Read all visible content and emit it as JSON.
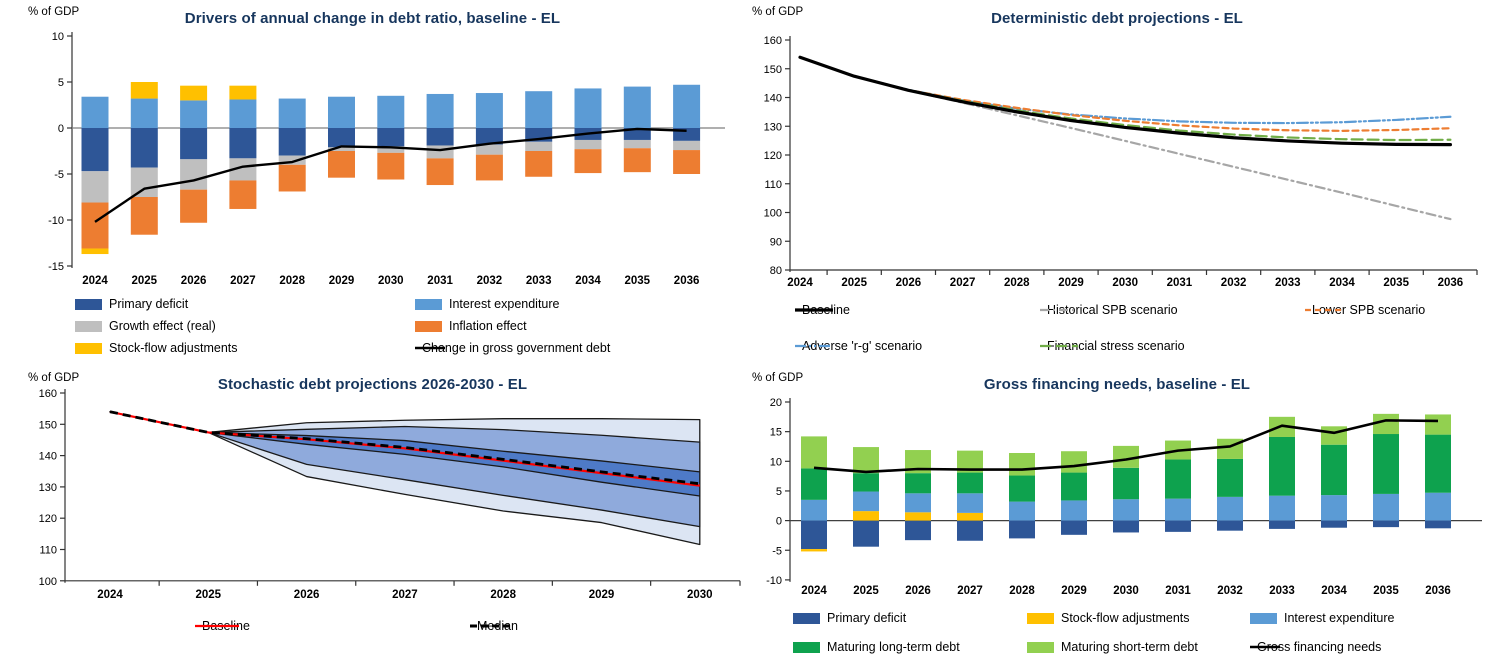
{
  "chart_data": [
    {
      "type": "bar",
      "title": "Drivers of annual change in debt ratio, baseline - EL",
      "unit": "% of GDP",
      "categories": [
        "2024",
        "2025",
        "2026",
        "2027",
        "2028",
        "2029",
        "2030",
        "2031",
        "2032",
        "2033",
        "2034",
        "2035",
        "2036"
      ],
      "ylim": [
        -15,
        10
      ],
      "ytick": 5,
      "grid": false,
      "legend_position": "bottom",
      "series": [
        {
          "name": "Primary deficit",
          "color": "#2E5697",
          "values": [
            -4.7,
            -4.3,
            -3.4,
            -3.3,
            -3.0,
            -2.1,
            -2.0,
            -1.9,
            -1.8,
            -1.5,
            -1.3,
            -1.3,
            -1.4
          ]
        },
        {
          "name": "Interest expenditure",
          "color": "#5B9BD5",
          "values": [
            3.4,
            3.2,
            3.0,
            3.1,
            3.2,
            3.4,
            3.5,
            3.7,
            3.8,
            4.0,
            4.3,
            4.5,
            4.7
          ]
        },
        {
          "name": "Growth effect (real)",
          "color": "#BFBFBF",
          "values": [
            -3.4,
            -3.2,
            -3.3,
            -2.4,
            -1.0,
            -0.4,
            -0.7,
            -1.4,
            -1.1,
            -1.0,
            -1.0,
            -0.9,
            -1.0
          ]
        },
        {
          "name": "Inflation effect",
          "color": "#ED7D31",
          "values": [
            -5.0,
            -4.1,
            -3.6,
            -3.1,
            -2.9,
            -2.9,
            -2.9,
            -2.9,
            -2.8,
            -2.8,
            -2.6,
            -2.6,
            -2.6
          ]
        },
        {
          "name": "Stock-flow adjustments",
          "color": "#FFC000",
          "values": [
            -0.6,
            1.8,
            1.6,
            1.5,
            0,
            0,
            0,
            0,
            0,
            0,
            0,
            0,
            0
          ]
        }
      ],
      "line": {
        "name": "Change in gross government debt",
        "color": "#000000",
        "dash": "",
        "values": [
          -10.2,
          -6.6,
          -5.7,
          -4.2,
          -3.7,
          -2.0,
          -2.1,
          -2.4,
          -1.7,
          -1.2,
          -0.6,
          -0.1,
          -0.3
        ]
      }
    },
    {
      "type": "line",
      "title": "Deterministic debt projections - EL",
      "unit": "% of GDP",
      "x": [
        "2024",
        "2025",
        "2026",
        "2027",
        "2028",
        "2029",
        "2030",
        "2031",
        "2032",
        "2033",
        "2034",
        "2035",
        "2036"
      ],
      "ylim": [
        80,
        160
      ],
      "ytick": 10,
      "grid": false,
      "legend_position": "bottom",
      "series": [
        {
          "name": "Baseline",
          "color": "#000000",
          "width": 3.2,
          "dash": "",
          "values": [
            154,
            147.4,
            142.5,
            138.5,
            135.0,
            132.0,
            129.6,
            127.6,
            126.0,
            124.9,
            124.1,
            123.7,
            123.6
          ]
        },
        {
          "name": "Historical SPB scenario",
          "color": "#A6A6A6",
          "width": 2.2,
          "dash": "9 4 2 4",
          "values": [
            154,
            147.4,
            142.5,
            138.2,
            133.8,
            129.4,
            124.9,
            120.4,
            115.9,
            111.4,
            106.9,
            102.3,
            97.7
          ]
        },
        {
          "name": "Lower SPB scenario",
          "color": "#ED7D31",
          "width": 2.2,
          "dash": "6 4",
          "values": [
            154,
            147.4,
            142.6,
            139.2,
            136.4,
            133.9,
            131.9,
            130.3,
            129.2,
            128.6,
            128.4,
            128.7,
            129.3
          ]
        },
        {
          "name": "Adverse 'r-g' scenario",
          "color": "#5B9BD5",
          "width": 2.2,
          "dash": "11 3 2 3 2 3",
          "values": [
            154,
            147.4,
            142.7,
            139.0,
            136.1,
            134.1,
            132.7,
            131.7,
            131.2,
            131.1,
            131.4,
            132.2,
            133.3
          ]
        },
        {
          "name": "Financial stress scenario",
          "color": "#70AD47",
          "width": 2.2,
          "dash": "11 5",
          "values": [
            154,
            147.4,
            142.6,
            138.8,
            135.5,
            132.7,
            130.4,
            128.5,
            127.1,
            126.1,
            125.5,
            125.2,
            125.3
          ]
        }
      ]
    },
    {
      "type": "area",
      "title": "Stochastic debt projections 2026-2030 - EL",
      "unit": "% of GDP",
      "x": [
        "2024",
        "2025",
        "2026",
        "2027",
        "2028",
        "2029",
        "2030"
      ],
      "ylim": [
        100,
        160
      ],
      "ytick": 10,
      "grid": false,
      "legend_position": "bottom",
      "band_colors": [
        "#DCE5F3",
        "#8FAADC",
        "#4E7AC7"
      ],
      "bands": {
        "p90": [
          154,
          147.4,
          150.5,
          151.3,
          151.8,
          151.8,
          151.5
        ],
        "p80": [
          154,
          147.4,
          148.4,
          149.3,
          148.3,
          146.5,
          144.3
        ],
        "p60": [
          154,
          147.4,
          146.4,
          144.8,
          141.4,
          138.3,
          134.8
        ],
        "p40": [
          154,
          147.4,
          143.6,
          140.4,
          136.4,
          131.5,
          127.1
        ],
        "p20": [
          154,
          147.4,
          137.2,
          132.3,
          127.3,
          122.6,
          117.3
        ],
        "p10": [
          154,
          147.4,
          133.3,
          127.6,
          122.3,
          118.6,
          111.6
        ]
      },
      "baseline": {
        "name": "Baseline",
        "color": "#FF0000",
        "dash": "",
        "values": [
          154,
          147.4,
          145.2,
          142.3,
          138.4,
          134.4,
          130.4
        ]
      },
      "median": {
        "name": "Median",
        "color": "#000000",
        "dash": "7 4",
        "values": [
          154,
          147.4,
          145.4,
          142.6,
          138.8,
          134.8,
          131.0
        ]
      }
    },
    {
      "type": "bar",
      "title": "Gross financing needs, baseline - EL",
      "unit": "% of GDP",
      "categories": [
        "2024",
        "2025",
        "2026",
        "2027",
        "2028",
        "2029",
        "2030",
        "2031",
        "2032",
        "2033",
        "2034",
        "2035",
        "2036"
      ],
      "ylim": [
        -10,
        20
      ],
      "ytick": 5,
      "grid": false,
      "legend_position": "bottom",
      "series": [
        {
          "name": "Primary deficit",
          "color": "#2E5697",
          "values": [
            -4.8,
            -4.4,
            -3.3,
            -3.4,
            -3.0,
            -2.4,
            -2.0,
            -1.9,
            -1.7,
            -1.4,
            -1.2,
            -1.1,
            -1.3
          ]
        },
        {
          "name": "Stock-flow adjustments",
          "color": "#FFC000",
          "values": [
            -0.4,
            1.6,
            1.4,
            1.3,
            0,
            0,
            0,
            0,
            0,
            0,
            0,
            0,
            0
          ]
        },
        {
          "name": "Interest expenditure",
          "color": "#5B9BD5",
          "values": [
            3.5,
            3.3,
            3.2,
            3.3,
            3.2,
            3.4,
            3.6,
            3.7,
            4.0,
            4.2,
            4.3,
            4.5,
            4.7
          ]
        },
        {
          "name": "Maturing long-term debt",
          "color": "#0EA24E",
          "values": [
            5.3,
            3.1,
            3.4,
            3.5,
            4.4,
            4.7,
            5.3,
            6.6,
            6.4,
            9.9,
            8.5,
            10.1,
            9.8
          ]
        },
        {
          "name": "Maturing short-term debt",
          "color": "#92D050",
          "values": [
            5.4,
            4.4,
            3.9,
            3.7,
            3.8,
            3.6,
            3.7,
            3.2,
            3.4,
            3.4,
            3.1,
            3.4,
            3.4
          ]
        }
      ],
      "line": {
        "name": "Gross financing needs",
        "color": "#000000",
        "dash": "",
        "values": [
          8.9,
          8.2,
          8.7,
          8.6,
          8.6,
          9.2,
          10.3,
          11.8,
          12.5,
          16.0,
          14.8,
          16.9,
          16.8
        ]
      }
    }
  ]
}
